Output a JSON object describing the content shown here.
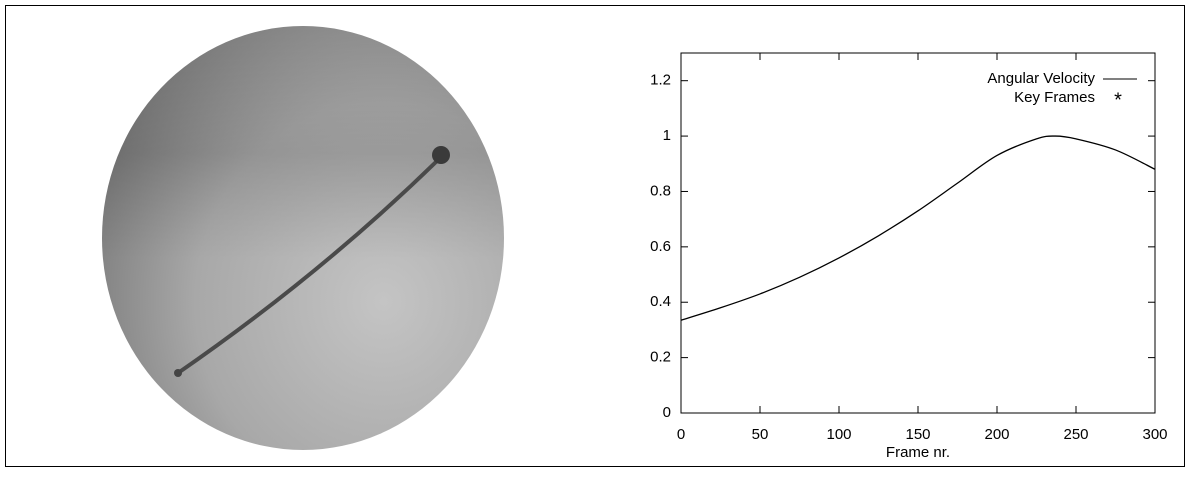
{
  "chart_data": {
    "type": "line",
    "xlabel": "Frame nr.",
    "x": [
      0,
      25,
      50,
      75,
      100,
      125,
      150,
      175,
      200,
      225,
      237,
      250,
      275,
      300
    ],
    "series": [
      {
        "name": "Angular Velocity",
        "color": "#000000",
        "values": [
          0.335,
          0.38,
          0.43,
          0.49,
          0.56,
          0.64,
          0.73,
          0.83,
          0.93,
          0.99,
          1.0,
          0.99,
          0.95,
          0.88
        ]
      },
      {
        "name": "Key Frames",
        "color": "#000000",
        "marker": "*",
        "x": [],
        "values": []
      }
    ],
    "xlim": [
      0,
      300
    ],
    "xticks": [
      0,
      50,
      100,
      150,
      200,
      250,
      300
    ],
    "ylim": [
      0,
      1.3
    ],
    "yticks": [
      0,
      0.2,
      0.4,
      0.6,
      0.8,
      1,
      1.2
    ],
    "legend": "upper right"
  }
}
